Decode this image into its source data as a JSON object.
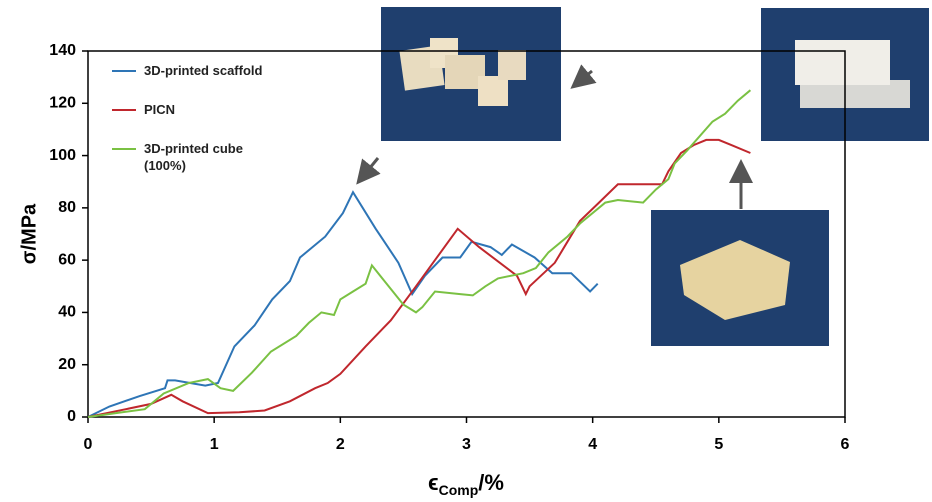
{
  "chart_data": {
    "type": "line",
    "ylabel": "σ/MPa",
    "xlabel": {
      "symbol": "ϵ",
      "subscript": "Comp",
      "unit": "/%"
    },
    "xlim": [
      0,
      6
    ],
    "xticks": [
      0,
      1,
      2,
      3,
      4,
      5,
      6
    ],
    "ylim": [
      0,
      140
    ],
    "yticks": [
      0,
      20,
      40,
      60,
      80,
      100,
      120,
      140
    ],
    "series": [
      {
        "name": "3D-printed scaffold",
        "color": "#2e75b6",
        "x": [
          0,
          0.17,
          0.41,
          0.61,
          0.63,
          0.69,
          0.81,
          0.93,
          1.03,
          1.16,
          1.32,
          1.46,
          1.6,
          1.68,
          1.88,
          2.02,
          2.1,
          2.28,
          2.46,
          2.57,
          2.67,
          2.81,
          2.95,
          3.04,
          3.19,
          3.28,
          3.36,
          3.54,
          3.68,
          3.83,
          3.98,
          4.04
        ],
        "values": [
          0,
          4,
          8,
          11,
          14,
          14,
          13,
          12,
          13,
          27,
          35,
          45,
          52,
          61,
          69,
          78,
          86,
          72,
          59,
          47,
          54,
          61,
          61,
          67,
          65,
          62,
          66,
          61,
          55,
          55,
          48,
          51
        ]
      },
      {
        "name": "PICN",
        "color": "#c0272d",
        "x": [
          0,
          0.3,
          0.5,
          0.66,
          0.75,
          0.95,
          1.2,
          1.4,
          1.6,
          1.8,
          1.9,
          2.0,
          2.2,
          2.4,
          2.6,
          2.75,
          2.93,
          3.1,
          3.4,
          3.47,
          3.5,
          3.7,
          3.8,
          3.9,
          4.05,
          4.2,
          4.4,
          4.55,
          4.6,
          4.7,
          4.8,
          4.9,
          5.0,
          5.1,
          5.25
        ],
        "values": [
          0,
          3,
          5,
          8.5,
          6,
          1.5,
          1.8,
          2.5,
          6,
          11,
          13,
          16.5,
          27,
          37,
          50,
          60,
          72,
          65,
          54,
          47,
          50,
          59,
          67,
          75,
          82,
          89,
          89,
          89,
          94,
          101,
          104,
          106,
          106,
          104,
          101
        ]
      },
      {
        "name": "3D-printed cube (100%)",
        "color": "#7ac143",
        "x": [
          0,
          0.3,
          0.45,
          0.6,
          0.8,
          0.95,
          1.05,
          1.15,
          1.3,
          1.45,
          1.65,
          1.75,
          1.85,
          1.95,
          2.0,
          2.1,
          2.2,
          2.25,
          2.35,
          2.5,
          2.6,
          2.65,
          2.75,
          2.95,
          3.05,
          3.15,
          3.25,
          3.45,
          3.55,
          3.65,
          3.8,
          3.9,
          4.1,
          4.2,
          4.4,
          4.5,
          4.6,
          4.65,
          4.75,
          4.95,
          5.05,
          5.15,
          5.25
        ],
        "values": [
          0,
          2,
          3,
          9,
          13,
          14.5,
          11,
          10,
          17,
          25,
          31,
          36,
          40,
          39,
          45,
          48,
          51,
          58,
          52,
          43,
          40,
          42,
          48,
          47,
          46.5,
          50,
          53,
          55,
          57,
          63,
          69,
          74,
          82,
          83,
          82,
          87,
          91,
          97,
          102,
          113,
          116,
          121,
          125
        ]
      }
    ]
  }
}
